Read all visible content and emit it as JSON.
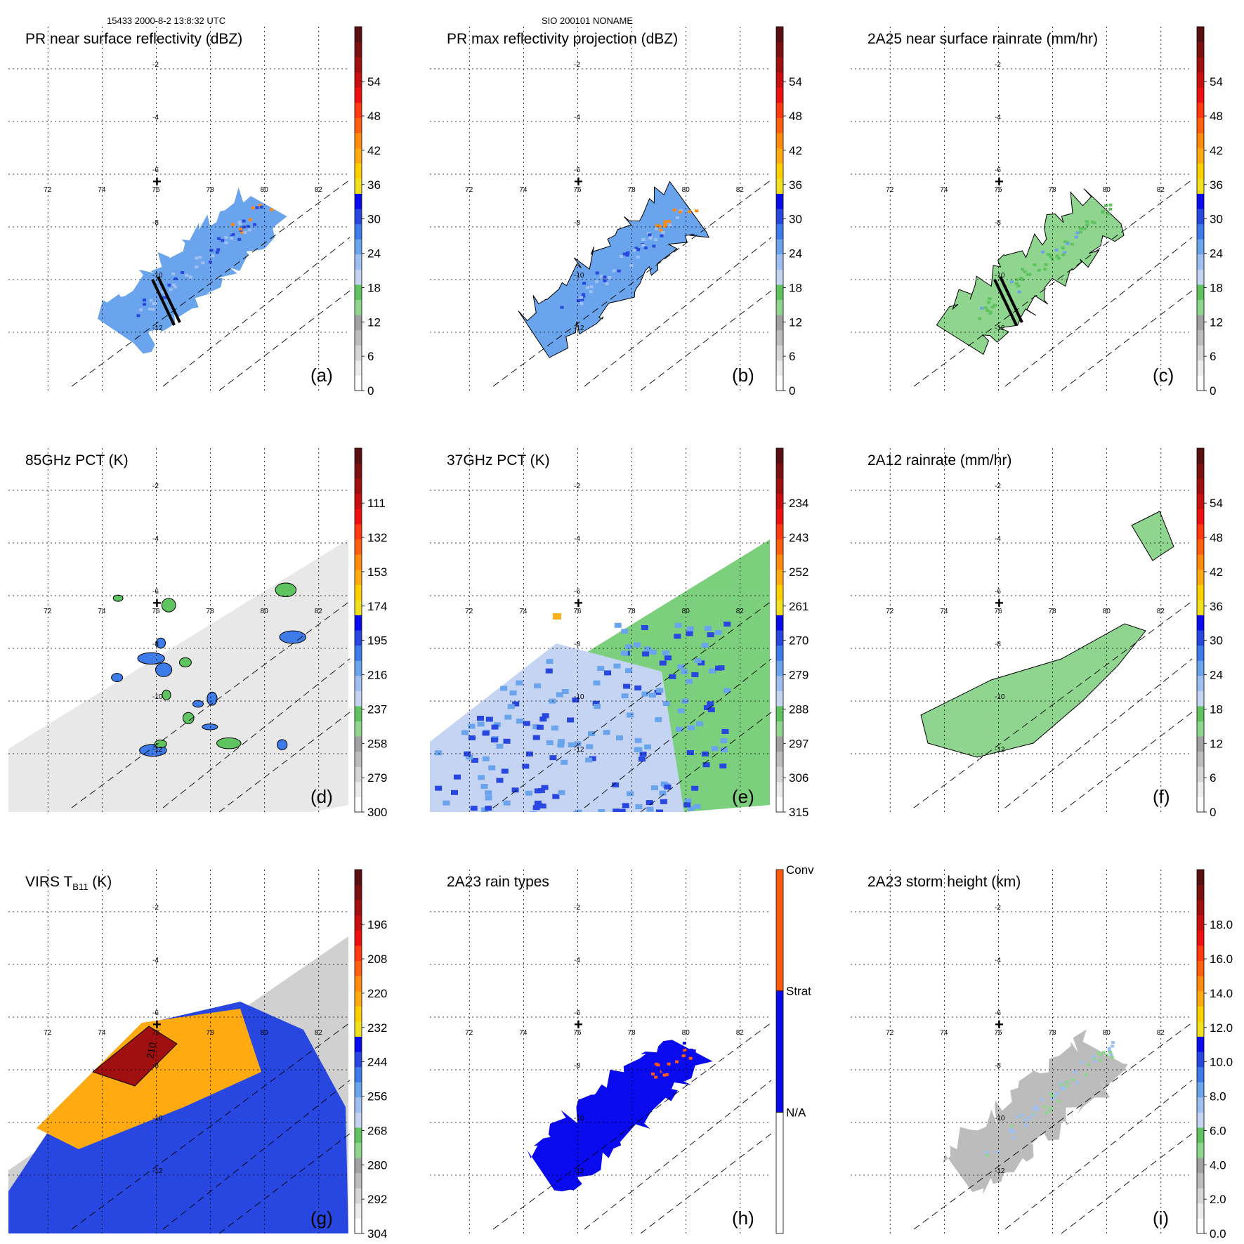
{
  "header": {
    "left": "15433 2000-8-2 13:8:32 UTC",
    "center": "SIO 200101 NONAME"
  },
  "map": {
    "lon_labels": [
      "72",
      "74",
      "76",
      "78",
      "80",
      "82"
    ],
    "lat_labels": [
      "-2",
      "-4",
      "-6",
      "-8",
      "-10",
      "-12"
    ],
    "marker": "+"
  },
  "palettes": {
    "rain": [
      "#ffffff",
      "#ececec",
      "#d6d6d6",
      "#bcbcbc",
      "#a2a2a2",
      "#8fd48f",
      "#5fc45f",
      "#c6d4f4",
      "#9fbff0",
      "#6aa4ec",
      "#3c7be8",
      "#2846e0",
      "#0a0aee",
      "#f0e020",
      "#ffd000",
      "#ffaa10",
      "#ff8a10",
      "#ff6010",
      "#ff3a10",
      "#ee1010",
      "#c81010",
      "#a01010",
      "#7a1010",
      "#5a1010"
    ],
    "types": [
      "#ffffff",
      "#0a0aee",
      "#ff5a10"
    ]
  },
  "panels": [
    {
      "id": "a",
      "title": "PR near surface reflectivity (dBZ)",
      "label": "(a)",
      "ticks": [
        "0",
        "6",
        "12",
        "18",
        "24",
        "30",
        "36",
        "42",
        "48",
        "54"
      ]
    },
    {
      "id": "b",
      "title": "PR max reflectivity projection (dBZ)",
      "label": "(b)",
      "ticks": [
        "0",
        "6",
        "12",
        "18",
        "24",
        "30",
        "36",
        "42",
        "48",
        "54"
      ]
    },
    {
      "id": "c",
      "title": "2A25 near surface rainrate (mm/hr)",
      "label": "(c)",
      "ticks": [
        "0",
        "6",
        "12",
        "18",
        "24",
        "30",
        "36",
        "42",
        "48",
        "54"
      ]
    },
    {
      "id": "d",
      "title": "85GHz PCT (K)",
      "label": "(d)",
      "ticks": [
        "300",
        "279",
        "258",
        "237",
        "216",
        "195",
        "174",
        "153",
        "132",
        "111"
      ]
    },
    {
      "id": "e",
      "title": "37GHz PCT (K)",
      "label": "(e)",
      "ticks": [
        "315",
        "306",
        "297",
        "288",
        "279",
        "270",
        "261",
        "252",
        "243",
        "234"
      ]
    },
    {
      "id": "f",
      "title": "2A12 rainrate (mm/hr)",
      "label": "(f)",
      "ticks": [
        "0",
        "6",
        "12",
        "18",
        "24",
        "30",
        "36",
        "42",
        "48",
        "54"
      ]
    },
    {
      "id": "g",
      "title": "VIRS T",
      "title_sub": "B11",
      "title_tail": " (K)",
      "label": "(g)",
      "ticks": [
        "304",
        "292",
        "280",
        "268",
        "256",
        "244",
        "232",
        "220",
        "208",
        "196"
      ],
      "contour_label": "210"
    },
    {
      "id": "h",
      "title": "2A23 rain types",
      "label": "(h)",
      "ticks": [
        "N/A",
        "Strat",
        "Conv"
      ]
    },
    {
      "id": "i",
      "title": "2A23 storm height (km)",
      "label": "(i)",
      "ticks": [
        "0.0",
        "2.0",
        "4.0",
        "6.0",
        "8.0",
        "10.0",
        "12.0",
        "14.0",
        "16.0",
        "18.0"
      ]
    }
  ]
}
